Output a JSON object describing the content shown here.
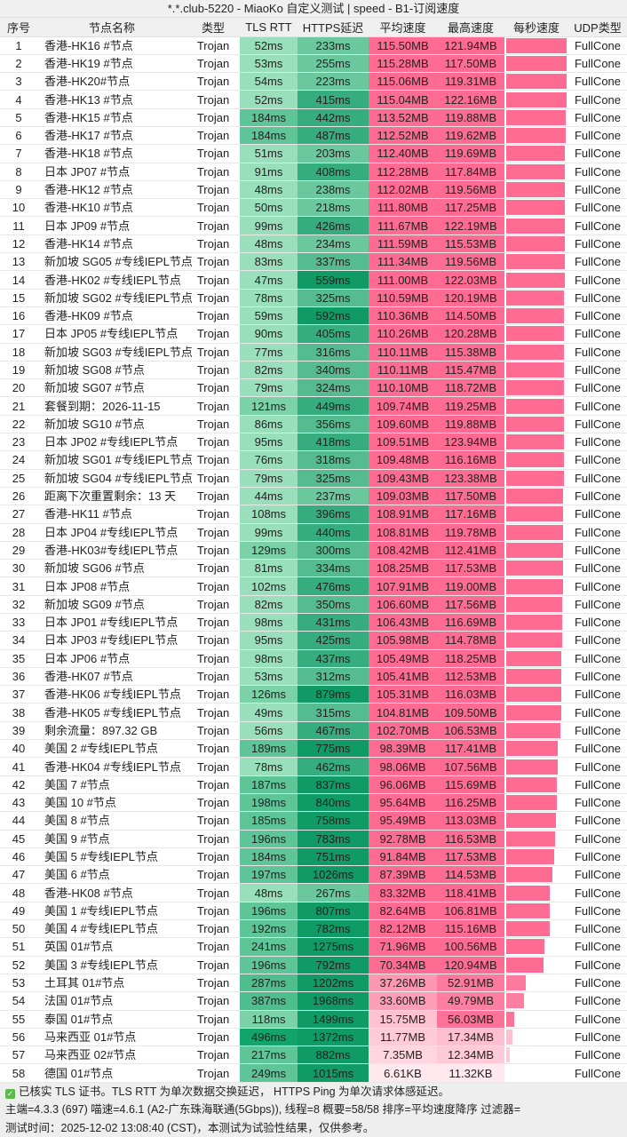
{
  "title": "*.*.club-5220 - MiaoKo 自定义测试 | speed - B1-订阅速度",
  "columns": [
    "序号",
    "节点名称",
    "类型",
    "TLS RTT",
    "HTTPS延迟",
    "平均速度",
    "最高速度",
    "每秒速度",
    "UDP类型"
  ],
  "colors": {
    "header_bg": "#f0f0f0",
    "latency_light": "#9ee2bc",
    "latency_dark": "#0f9a66",
    "speed_full": "#ff6b93",
    "speed_light": "#ffe6ec"
  },
  "rows": [
    [
      "1",
      "香港-HK16 #节点",
      "Trojan",
      "52ms",
      "233ms",
      "115.50MB",
      "121.94MB",
      "FullCone"
    ],
    [
      "2",
      "香港-HK19 #节点",
      "Trojan",
      "53ms",
      "255ms",
      "115.28MB",
      "117.50MB",
      "FullCone"
    ],
    [
      "3",
      "香港-HK20#节点",
      "Trojan",
      "54ms",
      "223ms",
      "115.06MB",
      "119.31MB",
      "FullCone"
    ],
    [
      "4",
      "香港-HK13 #节点",
      "Trojan",
      "52ms",
      "415ms",
      "115.04MB",
      "122.16MB",
      "FullCone"
    ],
    [
      "5",
      "香港-HK15 #节点",
      "Trojan",
      "184ms",
      "442ms",
      "113.52MB",
      "119.88MB",
      "FullCone"
    ],
    [
      "6",
      "香港-HK17 #节点",
      "Trojan",
      "184ms",
      "487ms",
      "112.52MB",
      "119.62MB",
      "FullCone"
    ],
    [
      "7",
      "香港-HK18 #节点",
      "Trojan",
      "51ms",
      "203ms",
      "112.40MB",
      "119.69MB",
      "FullCone"
    ],
    [
      "8",
      "日本 JP07 #节点",
      "Trojan",
      "91ms",
      "408ms",
      "112.28MB",
      "117.84MB",
      "FullCone"
    ],
    [
      "9",
      "香港-HK12 #节点",
      "Trojan",
      "48ms",
      "238ms",
      "112.02MB",
      "119.56MB",
      "FullCone"
    ],
    [
      "10",
      "香港-HK10 #节点",
      "Trojan",
      "50ms",
      "218ms",
      "111.80MB",
      "117.25MB",
      "FullCone"
    ],
    [
      "11",
      "日本 JP09 #节点",
      "Trojan",
      "99ms",
      "426ms",
      "111.67MB",
      "122.19MB",
      "FullCone"
    ],
    [
      "12",
      "香港-HK14 #节点",
      "Trojan",
      "48ms",
      "234ms",
      "111.59MB",
      "115.53MB",
      "FullCone"
    ],
    [
      "13",
      "新加坡 SG05 #专线IEPL节点",
      "Trojan",
      "83ms",
      "337ms",
      "111.34MB",
      "119.56MB",
      "FullCone"
    ],
    [
      "14",
      "香港-HK02 #专线IEPL节点",
      "Trojan",
      "47ms",
      "559ms",
      "111.00MB",
      "122.03MB",
      "FullCone"
    ],
    [
      "15",
      "新加坡 SG02 #专线IEPL节点",
      "Trojan",
      "78ms",
      "325ms",
      "110.59MB",
      "120.19MB",
      "FullCone"
    ],
    [
      "16",
      "香港-HK09 #节点",
      "Trojan",
      "59ms",
      "592ms",
      "110.36MB",
      "114.50MB",
      "FullCone"
    ],
    [
      "17",
      "日本 JP05 #专线IEPL节点",
      "Trojan",
      "90ms",
      "405ms",
      "110.26MB",
      "120.28MB",
      "FullCone"
    ],
    [
      "18",
      "新加坡 SG03 #专线IEPL节点",
      "Trojan",
      "77ms",
      "316ms",
      "110.11MB",
      "115.38MB",
      "FullCone"
    ],
    [
      "19",
      "新加坡 SG08 #节点",
      "Trojan",
      "82ms",
      "340ms",
      "110.11MB",
      "115.47MB",
      "FullCone"
    ],
    [
      "20",
      "新加坡 SG07 #节点",
      "Trojan",
      "79ms",
      "324ms",
      "110.10MB",
      "118.72MB",
      "FullCone"
    ],
    [
      "21",
      "套餐到期：2026-11-15",
      "Trojan",
      "121ms",
      "449ms",
      "109.74MB",
      "119.25MB",
      "FullCone"
    ],
    [
      "22",
      "新加坡 SG10 #节点",
      "Trojan",
      "86ms",
      "356ms",
      "109.60MB",
      "119.88MB",
      "FullCone"
    ],
    [
      "23",
      "日本 JP02 #专线IEPL节点",
      "Trojan",
      "95ms",
      "418ms",
      "109.51MB",
      "123.94MB",
      "FullCone"
    ],
    [
      "24",
      "新加坡 SG01 #专线IEPL节点",
      "Trojan",
      "76ms",
      "318ms",
      "109.48MB",
      "116.16MB",
      "FullCone"
    ],
    [
      "25",
      "新加坡 SG04 #专线IEPL节点",
      "Trojan",
      "79ms",
      "325ms",
      "109.43MB",
      "123.38MB",
      "FullCone"
    ],
    [
      "26",
      "距离下次重置剩余：13 天",
      "Trojan",
      "44ms",
      "237ms",
      "109.03MB",
      "117.50MB",
      "FullCone"
    ],
    [
      "27",
      "香港-HK11 #节点",
      "Trojan",
      "108ms",
      "396ms",
      "108.91MB",
      "117.16MB",
      "FullCone"
    ],
    [
      "28",
      "日本 JP04 #专线IEPL节点",
      "Trojan",
      "99ms",
      "440ms",
      "108.81MB",
      "119.78MB",
      "FullCone"
    ],
    [
      "29",
      "香港-HK03#专线IEPL节点",
      "Trojan",
      "129ms",
      "300ms",
      "108.42MB",
      "112.41MB",
      "FullCone"
    ],
    [
      "30",
      "新加坡 SG06 #节点",
      "Trojan",
      "81ms",
      "334ms",
      "108.25MB",
      "117.53MB",
      "FullCone"
    ],
    [
      "31",
      "日本 JP08 #节点",
      "Trojan",
      "102ms",
      "476ms",
      "107.91MB",
      "119.00MB",
      "FullCone"
    ],
    [
      "32",
      "新加坡 SG09 #节点",
      "Trojan",
      "82ms",
      "350ms",
      "106.60MB",
      "117.56MB",
      "FullCone"
    ],
    [
      "33",
      "日本 JP01 #专线IEPL节点",
      "Trojan",
      "98ms",
      "431ms",
      "106.43MB",
      "116.69MB",
      "FullCone"
    ],
    [
      "34",
      "日本 JP03 #专线IEPL节点",
      "Trojan",
      "95ms",
      "425ms",
      "105.98MB",
      "114.78MB",
      "FullCone"
    ],
    [
      "35",
      "日本 JP06 #节点",
      "Trojan",
      "98ms",
      "437ms",
      "105.49MB",
      "118.25MB",
      "FullCone"
    ],
    [
      "36",
      "香港-HK07 #节点",
      "Trojan",
      "53ms",
      "312ms",
      "105.41MB",
      "112.53MB",
      "FullCone"
    ],
    [
      "37",
      "香港-HK06 #专线IEPL节点",
      "Trojan",
      "126ms",
      "879ms",
      "105.31MB",
      "116.03MB",
      "FullCone"
    ],
    [
      "38",
      "香港-HK05 #专线IEPL节点",
      "Trojan",
      "49ms",
      "315ms",
      "104.81MB",
      "109.50MB",
      "FullCone"
    ],
    [
      "39",
      "剩余流量：897.32 GB",
      "Trojan",
      "56ms",
      "467ms",
      "102.70MB",
      "106.53MB",
      "FullCone"
    ],
    [
      "40",
      "美国 2 #专线IEPL节点",
      "Trojan",
      "189ms",
      "775ms",
      "98.39MB",
      "117.41MB",
      "FullCone"
    ],
    [
      "41",
      "香港-HK04 #专线IEPL节点",
      "Trojan",
      "78ms",
      "462ms",
      "98.06MB",
      "107.56MB",
      "FullCone"
    ],
    [
      "42",
      "美国 7 #节点",
      "Trojan",
      "187ms",
      "837ms",
      "96.06MB",
      "115.69MB",
      "FullCone"
    ],
    [
      "43",
      "美国 10 #节点",
      "Trojan",
      "198ms",
      "840ms",
      "95.64MB",
      "116.25MB",
      "FullCone"
    ],
    [
      "44",
      "美国 8 #节点",
      "Trojan",
      "185ms",
      "758ms",
      "95.49MB",
      "113.03MB",
      "FullCone"
    ],
    [
      "45",
      "美国 9 #节点",
      "Trojan",
      "196ms",
      "783ms",
      "92.78MB",
      "116.53MB",
      "FullCone"
    ],
    [
      "46",
      "美国 5 #专线IEPL节点",
      "Trojan",
      "184ms",
      "751ms",
      "91.84MB",
      "117.53MB",
      "FullCone"
    ],
    [
      "47",
      "美国 6 #节点",
      "Trojan",
      "197ms",
      "1026ms",
      "87.39MB",
      "114.53MB",
      "FullCone"
    ],
    [
      "48",
      "香港-HK08 #节点",
      "Trojan",
      "48ms",
      "267ms",
      "83.32MB",
      "118.41MB",
      "FullCone"
    ],
    [
      "49",
      "美国 1 #专线IEPL节点",
      "Trojan",
      "196ms",
      "807ms",
      "82.64MB",
      "106.81MB",
      "FullCone"
    ],
    [
      "50",
      "美国 4 #专线IEPL节点",
      "Trojan",
      "192ms",
      "782ms",
      "82.12MB",
      "115.16MB",
      "FullCone"
    ],
    [
      "51",
      "英国 01#节点",
      "Trojan",
      "241ms",
      "1275ms",
      "71.96MB",
      "100.56MB",
      "FullCone"
    ],
    [
      "52",
      "美国 3 #专线IEPL节点",
      "Trojan",
      "196ms",
      "792ms",
      "70.34MB",
      "120.94MB",
      "FullCone"
    ],
    [
      "53",
      "土耳其 01#节点",
      "Trojan",
      "287ms",
      "1202ms",
      "37.26MB",
      "52.91MB",
      "FullCone"
    ],
    [
      "54",
      "法国 01#节点",
      "Trojan",
      "387ms",
      "1968ms",
      "33.60MB",
      "49.79MB",
      "FullCone"
    ],
    [
      "55",
      "泰国 01#节点",
      "Trojan",
      "118ms",
      "1499ms",
      "15.75MB",
      "56.03MB",
      "FullCone"
    ],
    [
      "56",
      "马来西亚 01#节点",
      "Trojan",
      "496ms",
      "1372ms",
      "11.77MB",
      "17.34MB",
      "FullCone"
    ],
    [
      "57",
      "马来西亚 02#节点",
      "Trojan",
      "217ms",
      "882ms",
      "7.35MB",
      "12.34MB",
      "FullCone"
    ],
    [
      "58",
      "德国 01#节点",
      "Trojan",
      "249ms",
      "1015ms",
      "6.61KB",
      "11.32KB",
      "FullCone"
    ]
  ],
  "footer": {
    "line1": "已核实 TLS 证书。TLS RTT 为单次数据交换延迟， HTTPS Ping 为单次请求体感延迟。",
    "line2": "主端=4.3.3 (697) 喵速=4.6.1 (A2-广东珠海联通(5Gbps)), 线程=8 概要=58/58 排序=平均速度降序 过滤器=",
    "line3": "测试时间：2025-12-02 13:08:40 (CST)，本测试为试验性结果，仅供参考。"
  }
}
